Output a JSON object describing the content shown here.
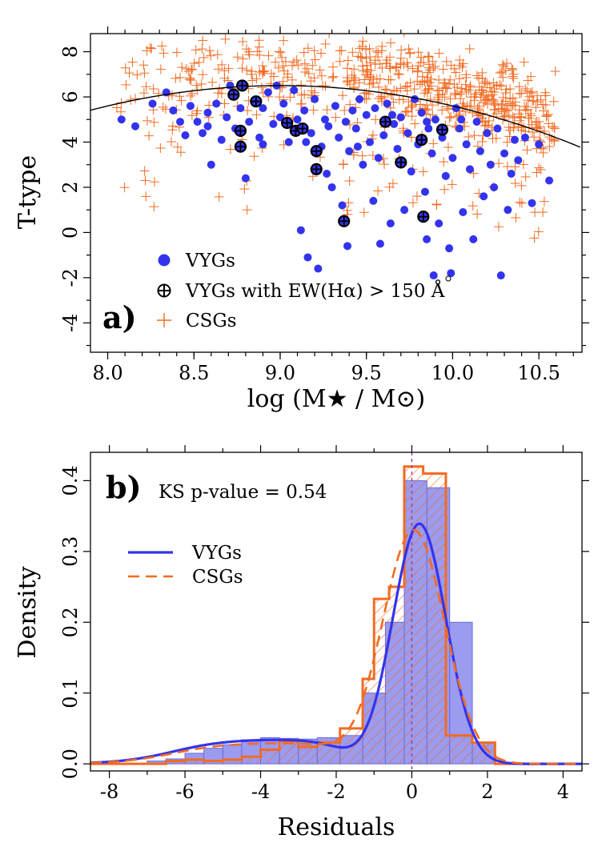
{
  "chart_data": [
    {
      "type": "scatter",
      "panel_label": "a)",
      "xlabel": "log (M★ / M⊙)",
      "ylabel": "T-type",
      "xlim": [
        7.9,
        10.75
      ],
      "ylim": [
        -5.3,
        8.8
      ],
      "xticks": [
        "8.0",
        "8.5",
        "9.0",
        "9.5",
        "10.0",
        "10.5"
      ],
      "yticks": [
        "-4",
        "-2",
        "0",
        "2",
        "4",
        "6",
        "8"
      ],
      "legend": {
        "vygs": "VYGs",
        "vygs_halpha": "VYGs with EW(Hα) > 150 Å",
        "csgs": "CSGs"
      },
      "fit_curve": {
        "label": "quadratic trend",
        "coeffs": [
          -66.4,
          16.2,
          -0.9
        ]
      },
      "series": [
        {
          "name": "VYGs",
          "color": "#3333ee",
          "points": [
            [
              8.08,
              5.0
            ],
            [
              8.16,
              4.7
            ],
            [
              8.26,
              5.7
            ],
            [
              8.34,
              6.2
            ],
            [
              8.38,
              5.4
            ],
            [
              8.42,
              4.9
            ],
            [
              8.45,
              4.3
            ],
            [
              8.48,
              5.6
            ],
            [
              8.52,
              4.9
            ],
            [
              8.55,
              4.4
            ],
            [
              8.58,
              5.3
            ],
            [
              8.6,
              3.0
            ],
            [
              8.63,
              5.7
            ],
            [
              8.66,
              4.1
            ],
            [
              8.69,
              5.1
            ],
            [
              8.71,
              6.5
            ],
            [
              8.74,
              4.6
            ],
            [
              8.77,
              5.5
            ],
            [
              8.8,
              2.4
            ],
            [
              8.82,
              4.9
            ],
            [
              8.86,
              5.8
            ],
            [
              8.88,
              4.2
            ],
            [
              8.9,
              5.5
            ],
            [
              8.93,
              6.2
            ],
            [
              8.96,
              4.8
            ],
            [
              8.98,
              6.5
            ],
            [
              9.0,
              5.1
            ],
            [
              9.02,
              5.7
            ],
            [
              9.05,
              4.0
            ],
            [
              9.08,
              6.3
            ],
            [
              9.1,
              5.0
            ],
            [
              9.12,
              0.1
            ],
            [
              9.14,
              5.4
            ],
            [
              9.16,
              -1.1
            ],
            [
              9.18,
              4.4
            ],
            [
              9.2,
              5.9
            ],
            [
              9.22,
              -1.6
            ],
            [
              9.24,
              3.8
            ],
            [
              9.26,
              5.0
            ],
            [
              9.28,
              4.7
            ],
            [
              9.3,
              2.0
            ],
            [
              9.32,
              5.6
            ],
            [
              9.34,
              4.2
            ],
            [
              9.36,
              1.2
            ],
            [
              9.38,
              4.9
            ],
            [
              9.39,
              -0.6
            ],
            [
              9.4,
              3.6
            ],
            [
              9.42,
              5.4
            ],
            [
              9.44,
              4.6
            ],
            [
              9.46,
              5.9
            ],
            [
              9.48,
              3.0
            ],
            [
              9.5,
              5.2
            ],
            [
              9.52,
              4.0
            ],
            [
              9.54,
              1.4
            ],
            [
              9.55,
              5.5
            ],
            [
              9.57,
              3.3
            ],
            [
              9.58,
              -0.5
            ],
            [
              9.6,
              4.3
            ],
            [
              9.62,
              5.7
            ],
            [
              9.64,
              0.4
            ],
            [
              9.66,
              4.8
            ],
            [
              9.68,
              3.7
            ],
            [
              9.7,
              5.1
            ],
            [
              9.72,
              1.0
            ],
            [
              9.74,
              4.4
            ],
            [
              9.76,
              2.7
            ],
            [
              9.78,
              5.9
            ],
            [
              9.8,
              3.9
            ],
            [
              9.82,
              5.3
            ],
            [
              9.84,
              1.8
            ],
            [
              9.85,
              -0.3
            ],
            [
              9.86,
              4.6
            ],
            [
              9.88,
              3.5
            ],
            [
              9.89,
              -1.9
            ],
            [
              9.9,
              5.0
            ],
            [
              9.92,
              0.4
            ],
            [
              9.94,
              4.2
            ],
            [
              9.96,
              2.5
            ],
            [
              9.98,
              -0.7
            ],
            [
              9.99,
              -1.8
            ],
            [
              10.0,
              3.3
            ],
            [
              10.02,
              5.5
            ],
            [
              10.04,
              4.6
            ],
            [
              10.06,
              0.9
            ],
            [
              10.08,
              3.9
            ],
            [
              10.1,
              2.8
            ],
            [
              10.12,
              -0.3
            ],
            [
              10.14,
              4.9
            ],
            [
              10.16,
              3.6
            ],
            [
              10.18,
              1.6
            ],
            [
              10.2,
              4.4
            ],
            [
              10.22,
              3.0
            ],
            [
              10.24,
              2.0
            ],
            [
              10.26,
              4.6
            ],
            [
              10.28,
              -1.9
            ],
            [
              10.3,
              3.5
            ],
            [
              10.32,
              1.0
            ],
            [
              10.34,
              2.6
            ],
            [
              10.36,
              4.1
            ],
            [
              10.38,
              3.2
            ],
            [
              10.42,
              4.2
            ],
            [
              10.46,
              1.3
            ],
            [
              10.5,
              3.9
            ],
            [
              10.56,
              2.3
            ],
            [
              8.58,
              4.7
            ],
            [
              8.9,
              3.9
            ],
            [
              9.27,
              2.6
            ],
            [
              9.65,
              5.2
            ],
            [
              10.05,
              5.0
            ],
            [
              9.15,
              4.0
            ],
            [
              9.45,
              3.8
            ],
            [
              9.85,
              4.9
            ]
          ]
        },
        {
          "name": "VYGs with EW(Hα) > 150 Å",
          "color": "#000000",
          "points": [
            [
              8.73,
              6.1
            ],
            [
              8.78,
              6.5
            ],
            [
              8.77,
              4.5
            ],
            [
              8.77,
              3.8
            ],
            [
              8.86,
              5.8
            ],
            [
              9.04,
              4.85
            ],
            [
              9.09,
              4.5
            ],
            [
              9.13,
              4.6
            ],
            [
              9.21,
              3.6
            ],
            [
              9.21,
              2.8
            ],
            [
              9.37,
              0.5
            ],
            [
              9.61,
              4.9
            ],
            [
              9.7,
              3.1
            ],
            [
              9.82,
              4.1
            ],
            [
              9.83,
              0.7
            ],
            [
              9.94,
              4.55
            ]
          ]
        },
        {
          "name": "CSGs",
          "color": "#f26b21",
          "count": 700
        }
      ]
    },
    {
      "type": "histogram",
      "panel_label": "b)",
      "annotation": "KS p-value = 0.54",
      "xlabel": "Residuals",
      "ylabel": "Density",
      "xlim": [
        -8.5,
        4.5
      ],
      "ylim": [
        -0.01,
        0.44
      ],
      "xticks": [
        "-8",
        "-6",
        "-4",
        "-2",
        "0",
        "2",
        "4"
      ],
      "yticks": [
        "0.0",
        "0.1",
        "0.2",
        "0.3",
        "0.4"
      ],
      "legend": {
        "vygs": "VYGs",
        "csgs": "CSGs"
      },
      "vline_at": 0,
      "series": [
        {
          "name": "VYGs",
          "color": "#3333ee",
          "bin_edges": [
            -7.0,
            -6.5,
            -6.0,
            -5.5,
            -5.0,
            -4.5,
            -4.0,
            -3.5,
            -3.0,
            -2.5,
            -1.9,
            -1.3,
            -0.7,
            -0.2,
            0.4,
            1.0,
            1.6,
            2.2
          ],
          "values": [
            0.004,
            0.007,
            0.015,
            0.022,
            0.027,
            0.034,
            0.037,
            0.036,
            0.035,
            0.037,
            0.04,
            0.1,
            0.2,
            0.4,
            0.39,
            0.2,
            0.03
          ],
          "density_curve": {
            "mu": 0.2,
            "sigma": 0.7,
            "peak": 0.339,
            "tail": 0.035
          }
        },
        {
          "name": "CSGs",
          "color": "#f26b21",
          "bin_edges": [
            -6.5,
            -6.0,
            -5.5,
            -5.0,
            -4.5,
            -4.0,
            -3.5,
            -3.0,
            -2.5,
            -1.9,
            -1.3,
            -1.0,
            -0.6,
            -0.2,
            0.3,
            0.9,
            1.6,
            2.2
          ],
          "values": [
            0.004,
            0.006,
            0.004,
            0.006,
            0.01,
            0.02,
            0.032,
            0.024,
            0.03,
            0.05,
            0.12,
            0.233,
            0.25,
            0.42,
            0.41,
            0.04,
            0.03
          ],
          "density_curve": {
            "mu": 0.05,
            "sigma": 0.82,
            "peak": 0.33,
            "tail": 0.03
          }
        }
      ]
    }
  ]
}
